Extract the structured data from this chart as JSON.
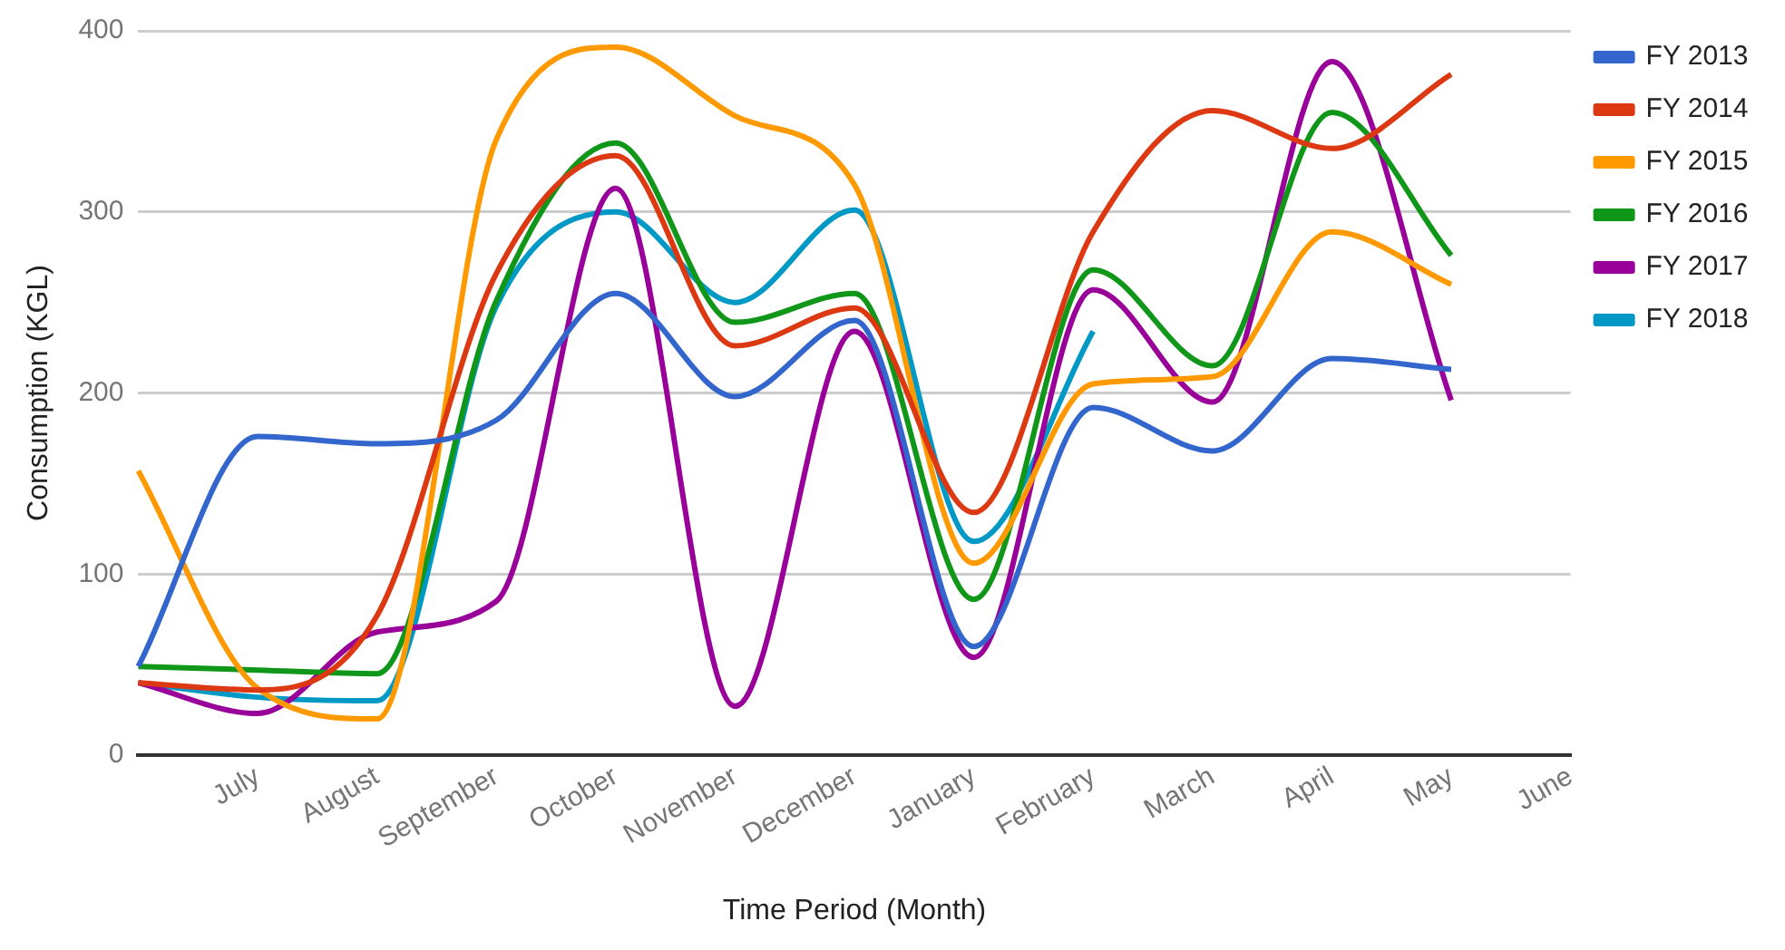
{
  "chart_data": {
    "type": "line",
    "xlabel": "Time Period (Month)",
    "ylabel": "Consumption (KGL)",
    "categories": [
      null,
      "July",
      "August",
      "September",
      "October",
      "November",
      "December",
      "January",
      "February",
      "March",
      "April",
      "May",
      "June"
    ],
    "ylim": [
      0,
      400
    ],
    "yticks": [
      0,
      100,
      200,
      300,
      400
    ],
    "grid": "y",
    "legend": "right",
    "marker": "none",
    "series": [
      {
        "name": "FY 2013",
        "color": "#3366cc",
        "values": [
          49,
          176,
          172,
          185,
          255,
          198,
          240,
          60,
          192,
          168,
          219,
          213,
          null
        ]
      },
      {
        "name": "FY 2014",
        "color": "#dc3912",
        "values": [
          40,
          36,
          77,
          266,
          331,
          226,
          247,
          134,
          289,
          356,
          335,
          376,
          null
        ]
      },
      {
        "name": "FY 2015",
        "color": "#ff9900",
        "values": [
          157,
          37,
          20,
          340,
          391,
          353,
          315,
          106,
          205,
          209,
          289,
          260,
          null
        ]
      },
      {
        "name": "FY 2016",
        "color": "#109618",
        "values": [
          49,
          47,
          45,
          251,
          338,
          239,
          255,
          86,
          268,
          215,
          355,
          276,
          null
        ]
      },
      {
        "name": "FY 2017",
        "color": "#990099",
        "values": [
          40,
          23,
          68,
          85,
          313,
          27,
          234,
          54,
          257,
          195,
          383,
          196,
          null
        ]
      },
      {
        "name": "FY 2018",
        "color": "#0099c6",
        "values": [
          40,
          32,
          30,
          248,
          300,
          250,
          301,
          118,
          234,
          null,
          null,
          null,
          null
        ]
      }
    ]
  }
}
